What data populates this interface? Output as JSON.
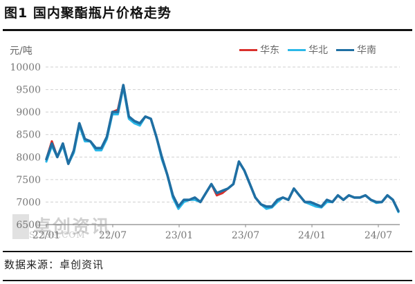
{
  "figure": {
    "title": "图1  国内聚酯瓶片价格走势",
    "unit_label": "元/吨",
    "source": "数据来源：卓创资讯",
    "watermark": "卓创资讯",
    "watermark_url": "SCI99.COM"
  },
  "legend": [
    {
      "label": "华东",
      "color": "#d9302c"
    },
    {
      "label": "华北",
      "color": "#2bb8e8"
    },
    {
      "label": "华南",
      "color": "#1f6fa3"
    }
  ],
  "chart_data": {
    "type": "line",
    "title": "国内聚酯瓶片价格走势",
    "xlabel": "",
    "ylabel": "元/吨",
    "ylim": [
      6500,
      10000
    ],
    "yticks": [
      6500,
      7000,
      7500,
      8000,
      8500,
      9000,
      9500,
      10000
    ],
    "xticks": [
      "22/01",
      "22/07",
      "23/01",
      "23/07",
      "24/01",
      "24/07"
    ],
    "grid": "horizontal dashed",
    "legend_position": "top-right",
    "x": [
      "22/01a",
      "22/01b",
      "22/02a",
      "22/02b",
      "22/03a",
      "22/03b",
      "22/04a",
      "22/04b",
      "22/05a",
      "22/05b",
      "22/06a",
      "22/06b",
      "22/07a",
      "22/07b",
      "22/08a",
      "22/08b",
      "22/09a",
      "22/09b",
      "22/10a",
      "22/10b",
      "22/11a",
      "22/11b",
      "22/12a",
      "22/12b",
      "23/01a",
      "23/01b",
      "23/02a",
      "23/02b",
      "23/03a",
      "23/03b",
      "23/04a",
      "23/04b",
      "23/05a",
      "23/05b",
      "23/06a",
      "23/06b",
      "23/07a",
      "23/07b",
      "23/08a",
      "23/08b",
      "23/09a",
      "23/09b",
      "23/10a",
      "23/10b",
      "23/11a",
      "23/11b",
      "23/12a",
      "23/12b",
      "24/01a",
      "24/01b",
      "24/02a",
      "24/02b",
      "24/03a",
      "24/03b",
      "24/04a",
      "24/04b",
      "24/05a",
      "24/05b",
      "24/06a",
      "24/06b",
      "24/07a",
      "24/07b",
      "24/08a",
      "24/08b",
      "24/09a"
    ],
    "series": [
      {
        "name": "华东",
        "color": "#d9302c",
        "values": [
          7950,
          8350,
          8000,
          8300,
          7850,
          8150,
          8750,
          8400,
          8350,
          8200,
          8200,
          8450,
          9000,
          9050,
          9600,
          8900,
          8800,
          8750,
          8900,
          8850,
          8450,
          8000,
          7600,
          7150,
          6900,
          7050,
          7050,
          7100,
          7000,
          7200,
          7400,
          7150,
          7200,
          7300,
          7400,
          7900,
          7700,
          7400,
          7100,
          6950,
          6900,
          6900,
          7050,
          7100,
          7050,
          7300,
          7150,
          7000,
          7000,
          6950,
          6900,
          7050,
          7000,
          7150,
          7050,
          7150,
          7100,
          7100,
          7150,
          7050,
          7000,
          7000,
          7150,
          7050,
          6800
        ]
      },
      {
        "name": "华北",
        "color": "#2bb8e8",
        "values": [
          7900,
          8250,
          8000,
          8250,
          7850,
          8100,
          8700,
          8350,
          8350,
          8150,
          8150,
          8400,
          8950,
          8950,
          9550,
          8850,
          8750,
          8700,
          8900,
          8850,
          8450,
          7950,
          7600,
          7100,
          6850,
          7000,
          7050,
          7050,
          7000,
          7200,
          7400,
          7200,
          7250,
          7300,
          7400,
          7900,
          7700,
          7400,
          7100,
          6950,
          6850,
          6880,
          7000,
          7100,
          7050,
          7300,
          7150,
          7000,
          6950,
          6900,
          6880,
          7000,
          7000,
          7150,
          7050,
          7150,
          7100,
          7100,
          7150,
          7050,
          6980,
          7000,
          7150,
          7050,
          6780
        ]
      },
      {
        "name": "华南",
        "color": "#1f6fa3",
        "values": [
          7950,
          8300,
          8000,
          8300,
          7850,
          8150,
          8750,
          8400,
          8350,
          8200,
          8200,
          8450,
          9000,
          9000,
          9600,
          8900,
          8800,
          8750,
          8900,
          8850,
          8450,
          8000,
          7600,
          7150,
          6900,
          7050,
          7050,
          7100,
          7000,
          7200,
          7400,
          7200,
          7250,
          7300,
          7400,
          7900,
          7700,
          7400,
          7100,
          6950,
          6900,
          6900,
          7050,
          7100,
          7050,
          7300,
          7150,
          7000,
          7000,
          6950,
          6900,
          7050,
          7000,
          7150,
          7050,
          7150,
          7100,
          7100,
          7150,
          7050,
          7000,
          7000,
          7150,
          7050,
          6800
        ]
      }
    ]
  }
}
